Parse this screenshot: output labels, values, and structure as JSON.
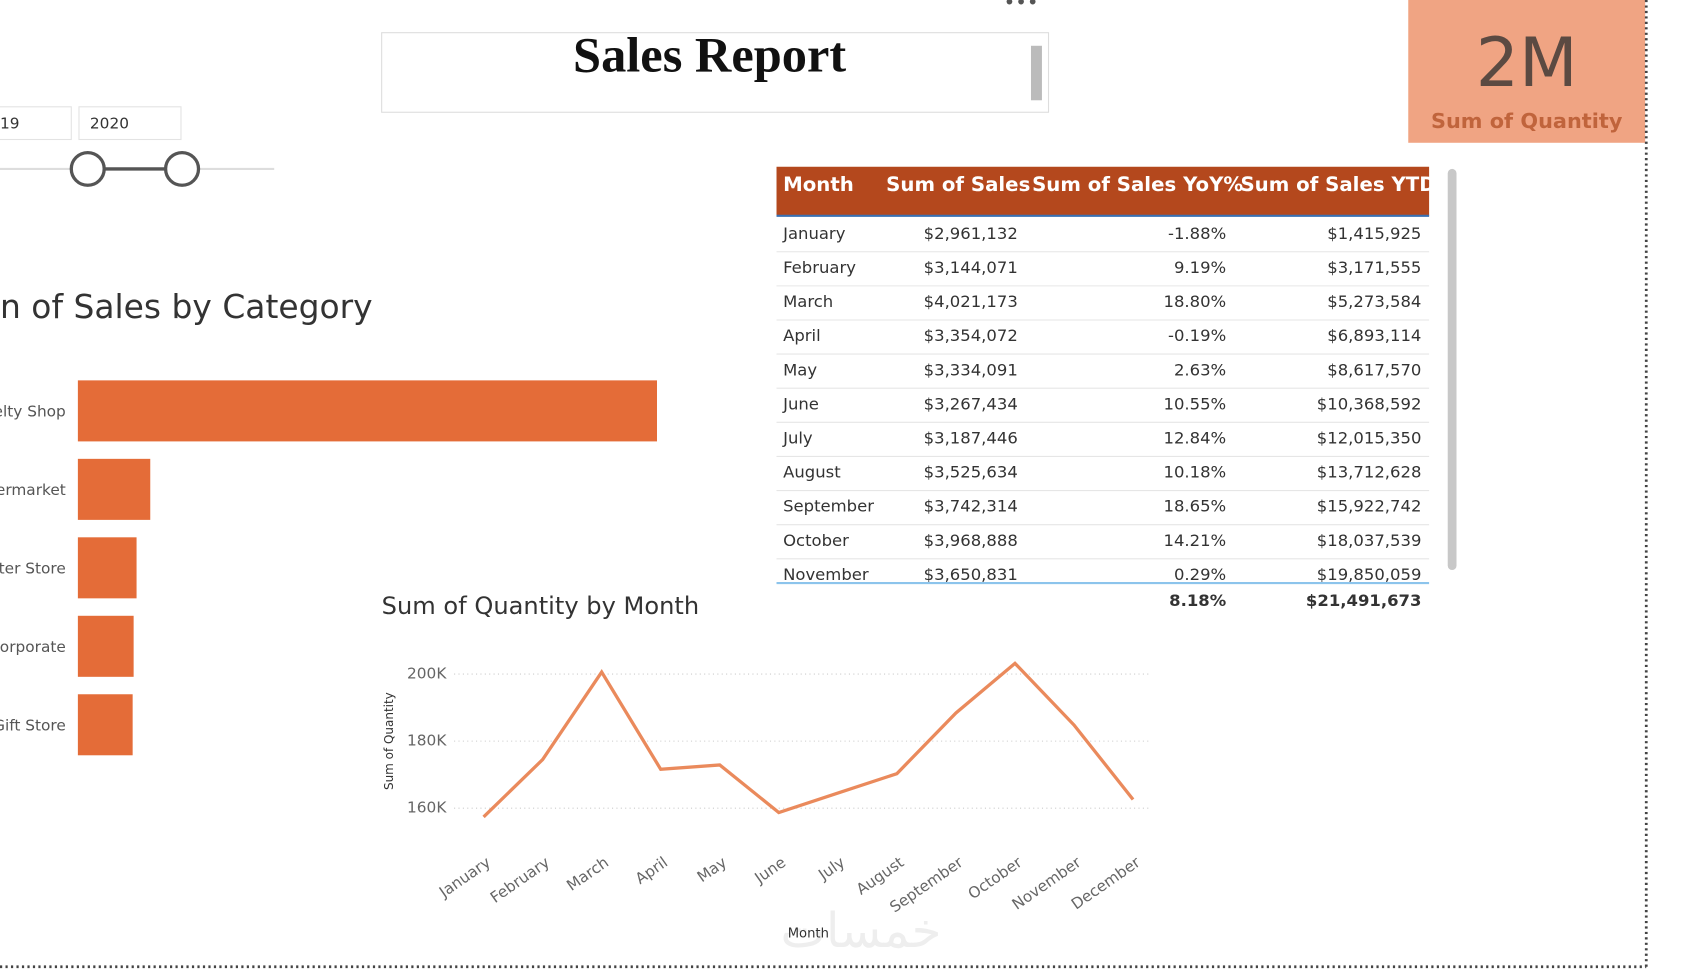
{
  "report": {
    "title": "Sales Report",
    "kpi": {
      "value": "2M",
      "label": "Sum of Quantity"
    },
    "slicer": {
      "start": "19",
      "end": "2020"
    },
    "watermark": "خمسات",
    "table": {
      "columns": [
        "Month",
        "Sum of Sales",
        "Sum of Sales YoY%",
        "Sum of Sales YTD"
      ],
      "rows": [
        [
          "January",
          "$2,961,132",
          "-1.88%",
          "$1,415,925"
        ],
        [
          "February",
          "$3,144,071",
          "9.19%",
          "$3,171,555"
        ],
        [
          "March",
          "$4,021,173",
          "18.80%",
          "$5,273,584"
        ],
        [
          "April",
          "$3,354,072",
          "-0.19%",
          "$6,893,114"
        ],
        [
          "May",
          "$3,334,091",
          "2.63%",
          "$8,617,570"
        ],
        [
          "June",
          "$3,267,434",
          "10.55%",
          "$10,368,592"
        ],
        [
          "July",
          "$3,187,446",
          "12.84%",
          "$12,015,350"
        ],
        [
          "August",
          "$3,525,634",
          "10.18%",
          "$13,712,628"
        ],
        [
          "September",
          "$3,742,314",
          "18.65%",
          "$15,922,742"
        ],
        [
          "October",
          "$3,968,888",
          "14.21%",
          "$18,037,539"
        ],
        [
          "November",
          "$3,650,831",
          "0.29%",
          "$19,850,059"
        ]
      ],
      "totals": {
        "yoy": "8.18%",
        "ytd": "$21,491,673"
      }
    }
  },
  "chart_data": [
    {
      "type": "hbar",
      "title": "n of Sales by Category",
      "categories": [
        "elty Shop",
        "ermarket",
        "uter Store",
        "Corporate",
        "Gift Store"
      ],
      "values": [
        29600000,
        3700000,
        3000000,
        2850000,
        2800000
      ],
      "color": "#e46c38",
      "xlim": [
        0,
        31000000
      ]
    },
    {
      "type": "line",
      "title": "Sum of Quantity by Month",
      "x_label": "Month",
      "y_label": "Sum of Quantity",
      "categories": [
        "January",
        "February",
        "March",
        "April",
        "May",
        "June",
        "July",
        "August",
        "September",
        "October",
        "November",
        "December"
      ],
      "series": [
        {
          "name": "Sum of Quantity",
          "color": "#ea8a5c",
          "values": [
            157400,
            174500,
            200600,
            171600,
            172900,
            158700,
            164500,
            170300,
            188400,
            203200,
            184800,
            162600
          ]
        }
      ],
      "ylim": [
        154000,
        206000
      ],
      "yticks": [
        {
          "value": 160000,
          "label": "160K"
        },
        {
          "value": 180000,
          "label": "180K"
        },
        {
          "value": 200000,
          "label": "200K"
        }
      ],
      "grid": true
    }
  ]
}
